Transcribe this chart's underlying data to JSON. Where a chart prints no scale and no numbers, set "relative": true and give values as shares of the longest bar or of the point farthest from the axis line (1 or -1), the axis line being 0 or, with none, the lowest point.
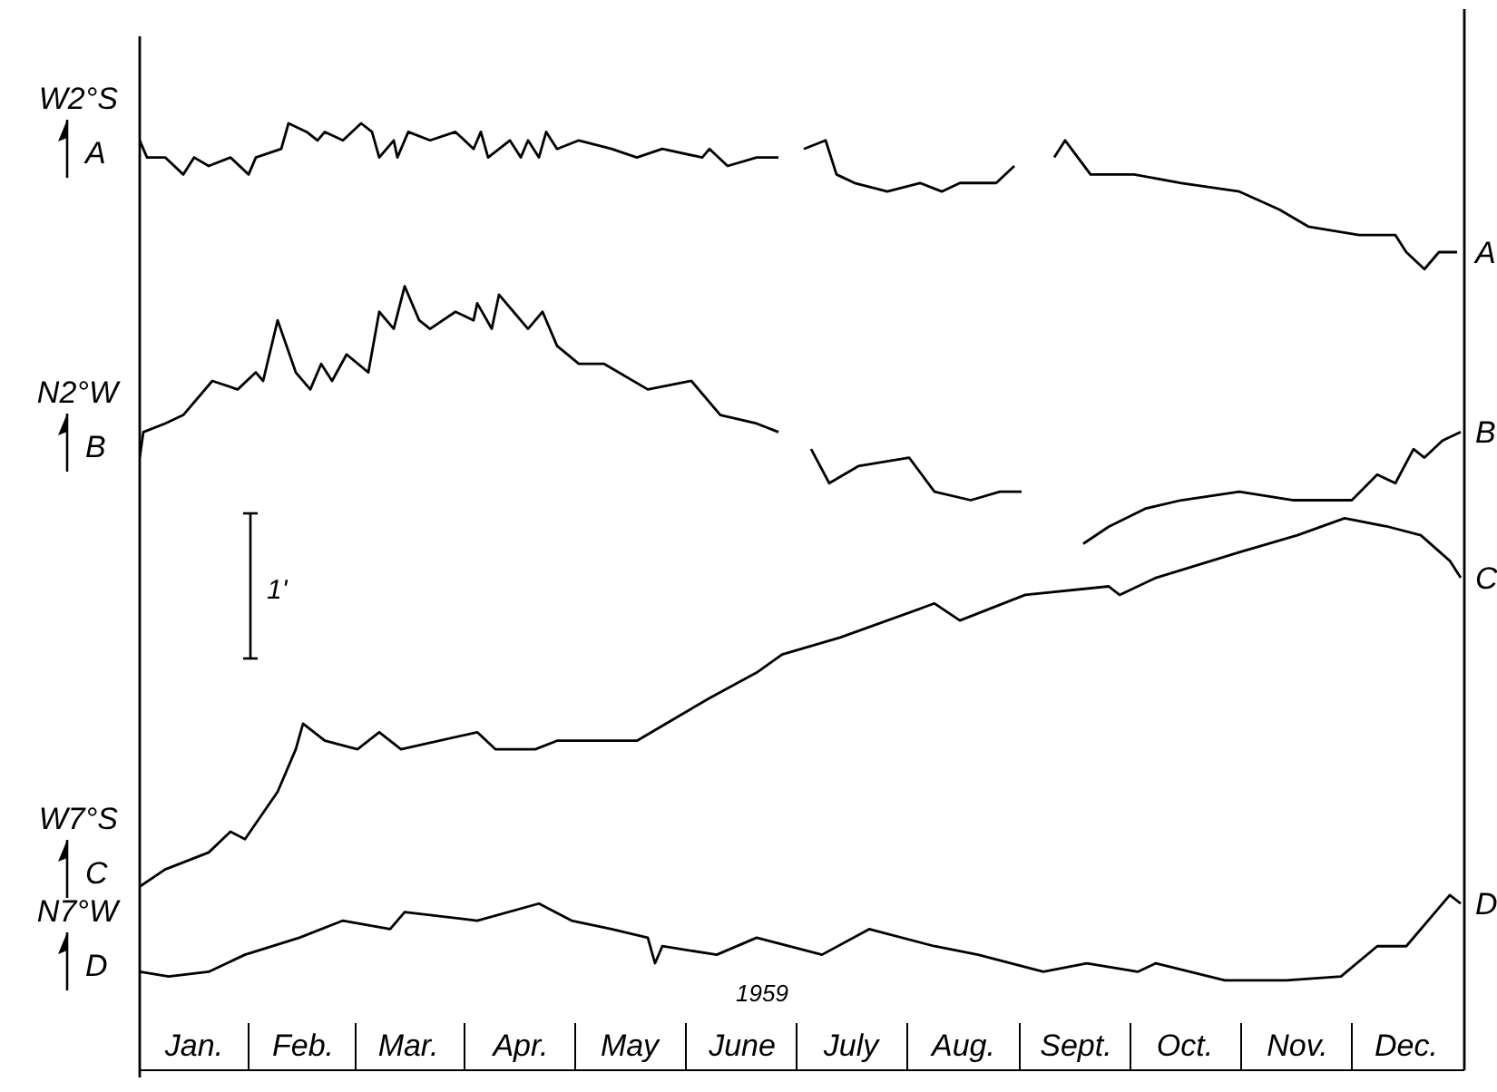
{
  "chart_data": {
    "type": "line",
    "relative": true,
    "xlabel": "1959",
    "xlim": [
      "1959-01-01",
      "1960-01-01"
    ],
    "xticks": [
      {
        "value": "1959-01-16",
        "label": "Jan."
      },
      {
        "value": "1959-02-15",
        "label": "Feb."
      },
      {
        "value": "1959-03-16",
        "label": "Mar."
      },
      {
        "value": "1959-04-16",
        "label": "Apr."
      },
      {
        "value": "1959-05-16",
        "label": "May"
      },
      {
        "value": "1959-06-16",
        "label": "June"
      },
      {
        "value": "1959-07-16",
        "label": "July"
      },
      {
        "value": "1959-08-16",
        "label": "Aug."
      },
      {
        "value": "1959-09-16",
        "label": "Sept."
      },
      {
        "value": "1959-10-16",
        "label": "Oct."
      },
      {
        "value": "1959-11-16",
        "label": "Nov."
      },
      {
        "value": "1959-12-16",
        "label": "Dec."
      }
    ],
    "grid": false,
    "legend": "left",
    "marker": "none",
    "line_style": "solid",
    "annotations": [
      "W2°S",
      "N2°W",
      "W7°S",
      "N7°W",
      "1'"
    ],
    "series": [
      {
        "name": "A",
        "color": "#000000",
        "x": [
          "1959-01-01",
          "1959-01-03",
          "1959-01-08",
          "1959-01-13",
          "1959-01-16",
          "1959-01-20",
          "1959-01-26",
          "1959-01-31",
          "1959-02-02",
          "1959-02-09",
          "1959-02-11",
          "1959-02-16",
          "1959-02-19",
          "1959-02-21",
          "1959-02-26",
          "1959-03-03",
          "1959-03-06",
          "1959-03-08",
          "1959-03-12",
          "1959-03-13",
          "1959-03-16",
          "1959-03-22",
          "1959-03-29",
          "1959-04-03",
          "1959-04-05",
          "1959-04-07",
          "1959-04-13",
          "1959-04-16",
          "1959-04-18",
          "1959-04-21",
          "1959-04-23",
          "1959-04-26",
          "1959-05-02",
          "1959-05-11",
          "1959-05-18",
          "1959-05-25",
          "1959-06-05",
          "1959-06-07",
          "1959-06-12",
          "1959-06-20",
          "1959-06-26",
          "1959-06-30",
          "1959-07-03",
          "1959-07-09",
          "1959-07-12",
          "1959-07-17",
          "1959-07-26",
          "1959-08-04",
          "1959-08-10",
          "1959-08-15",
          "1959-08-25",
          "1959-08-30",
          "1959-09-04",
          "1959-09-10",
          "1959-09-13",
          "1959-09-20",
          "1959-10-02",
          "1959-10-15",
          "1959-10-31",
          "1959-11-11",
          "1959-11-19",
          "1959-12-03",
          "1959-12-13",
          "1959-12-16",
          "1959-12-21",
          "1959-12-25",
          "1959-12-30"
        ],
        "values": [
          0.982,
          0.964,
          0.964,
          0.946,
          0.964,
          0.955,
          0.964,
          0.946,
          0.964,
          0.973,
          1,
          0.991,
          0.982,
          0.991,
          0.982,
          1,
          0.991,
          0.964,
          0.982,
          0.964,
          0.991,
          0.982,
          0.991,
          0.973,
          0.991,
          0.964,
          0.982,
          0.964,
          0.982,
          0.964,
          0.991,
          0.973,
          0.982,
          0.973,
          0.964,
          0.973,
          0.964,
          0.973,
          0.955,
          0.964,
          0.964,
          null,
          0.973,
          0.982,
          0.946,
          0.937,
          0.928,
          0.937,
          0.928,
          0.937,
          0.937,
          0.955,
          null,
          0.964,
          0.982,
          0.946,
          0.946,
          0.937,
          0.928,
          0.909,
          0.891,
          0.882,
          0.882,
          0.864,
          0.846,
          0.864,
          0.864
        ]
      },
      {
        "name": "B",
        "color": "#000000",
        "x": [
          "1959-01-01",
          "1959-01-02",
          "1959-01-08",
          "1959-01-13",
          "1959-01-21",
          "1959-01-28",
          "1959-02-02",
          "1959-02-04",
          "1959-02-08",
          "1959-02-13",
          "1959-02-17",
          "1959-02-20",
          "1959-02-23",
          "1959-02-27",
          "1959-03-05",
          "1959-03-08",
          "1959-03-12",
          "1959-03-15",
          "1959-03-19",
          "1959-03-22",
          "1959-03-29",
          "1959-04-03",
          "1959-04-04",
          "1959-04-08",
          "1959-04-10",
          "1959-04-14",
          "1959-04-18",
          "1959-04-22",
          "1959-04-26",
          "1959-05-02",
          "1959-05-09",
          "1959-05-21",
          "1959-06-02",
          "1959-06-10",
          "1959-06-20",
          "1959-06-26",
          "1959-06-30",
          "1959-07-05",
          "1959-07-10",
          "1959-07-18",
          "1959-08-01",
          "1959-08-08",
          "1959-08-18",
          "1959-08-26",
          "1959-09-01",
          "1959-09-10",
          "1959-09-18",
          "1959-09-25",
          "1959-10-05",
          "1959-10-15",
          "1959-10-31",
          "1959-11-15",
          "1959-12-01",
          "1959-12-08",
          "1959-12-13",
          "1959-12-18",
          "1959-12-21",
          "1959-12-26",
          "1959-12-31"
        ],
        "values": [
          0.647,
          0.674,
          0.683,
          0.692,
          0.728,
          0.719,
          0.737,
          0.728,
          0.792,
          0.737,
          0.719,
          0.746,
          0.728,
          0.756,
          0.737,
          0.801,
          0.783,
          0.828,
          0.792,
          0.783,
          0.801,
          0.792,
          0.81,
          0.783,
          0.819,
          0.801,
          0.783,
          0.801,
          0.765,
          0.746,
          0.746,
          0.719,
          0.728,
          0.692,
          0.683,
          0.674,
          null,
          0.656,
          0.62,
          0.638,
          0.647,
          0.611,
          0.602,
          0.611,
          0.611,
          null,
          0.556,
          0.574,
          0.593,
          0.602,
          0.611,
          0.602,
          0.602,
          0.629,
          0.62,
          0.656,
          0.647,
          0.665,
          0.674
        ]
      },
      {
        "name": "C",
        "color": "#000000",
        "x": [
          "1959-01-01",
          "1959-01-08",
          "1959-01-20",
          "1959-01-26",
          "1959-01-30",
          "1959-02-08",
          "1959-02-13",
          "1959-02-15",
          "1959-02-21",
          "1959-03-02",
          "1959-03-08",
          "1959-03-14",
          "1959-04-04",
          "1959-04-09",
          "1959-04-20",
          "1959-04-26",
          "1959-05-08",
          "1959-05-18",
          "1959-05-30",
          "1959-06-07",
          "1959-06-20",
          "1959-06-27",
          "1959-07-13",
          "1959-08-08",
          "1959-08-15",
          "1959-09-02",
          "1959-09-25",
          "1959-09-28",
          "1959-10-08",
          "1959-10-31",
          "1959-11-16",
          "1959-11-29",
          "1959-12-11",
          "1959-12-20",
          "1959-12-28",
          "1959-12-31"
        ],
        "values": [
          0.194,
          0.212,
          0.23,
          0.252,
          0.244,
          0.294,
          0.339,
          0.366,
          0.348,
          0.339,
          0.357,
          0.339,
          0.357,
          0.339,
          0.339,
          0.348,
          0.348,
          0.348,
          0.375,
          0.393,
          0.42,
          0.439,
          0.457,
          0.493,
          0.475,
          0.502,
          0.511,
          0.502,
          0.52,
          0.547,
          0.565,
          0.583,
          0.574,
          0.565,
          0.538,
          0.52
        ]
      },
      {
        "name": "D",
        "color": "#000000",
        "x": [
          "1959-01-01",
          "1959-01-09",
          "1959-01-20",
          "1959-01-30",
          "1959-02-14",
          "1959-02-26",
          "1959-03-11",
          "1959-03-15",
          "1959-04-04",
          "1959-04-21",
          "1959-04-30",
          "1959-05-11",
          "1959-05-21",
          "1959-05-23",
          "1959-05-25",
          "1959-06-09",
          "1959-06-20",
          "1959-07-08",
          "1959-07-21",
          "1959-08-08",
          "1959-08-20",
          "1959-09-07",
          "1959-09-19",
          "1959-10-03",
          "1959-10-08",
          "1959-10-27",
          "1959-11-13",
          "1959-11-28",
          "1959-12-08",
          "1959-12-16",
          "1959-12-28",
          "1959-12-31"
        ],
        "values": [
          0.104,
          0.099,
          0.104,
          0.122,
          0.14,
          0.158,
          0.149,
          0.167,
          0.158,
          0.176,
          0.158,
          0.149,
          0.14,
          0.113,
          0.131,
          0.122,
          0.14,
          0.122,
          0.149,
          0.131,
          0.122,
          0.104,
          0.113,
          0.104,
          0.113,
          0.095,
          0.095,
          0.099,
          0.131,
          0.131,
          0.185,
          0.176
        ]
      }
    ]
  }
}
